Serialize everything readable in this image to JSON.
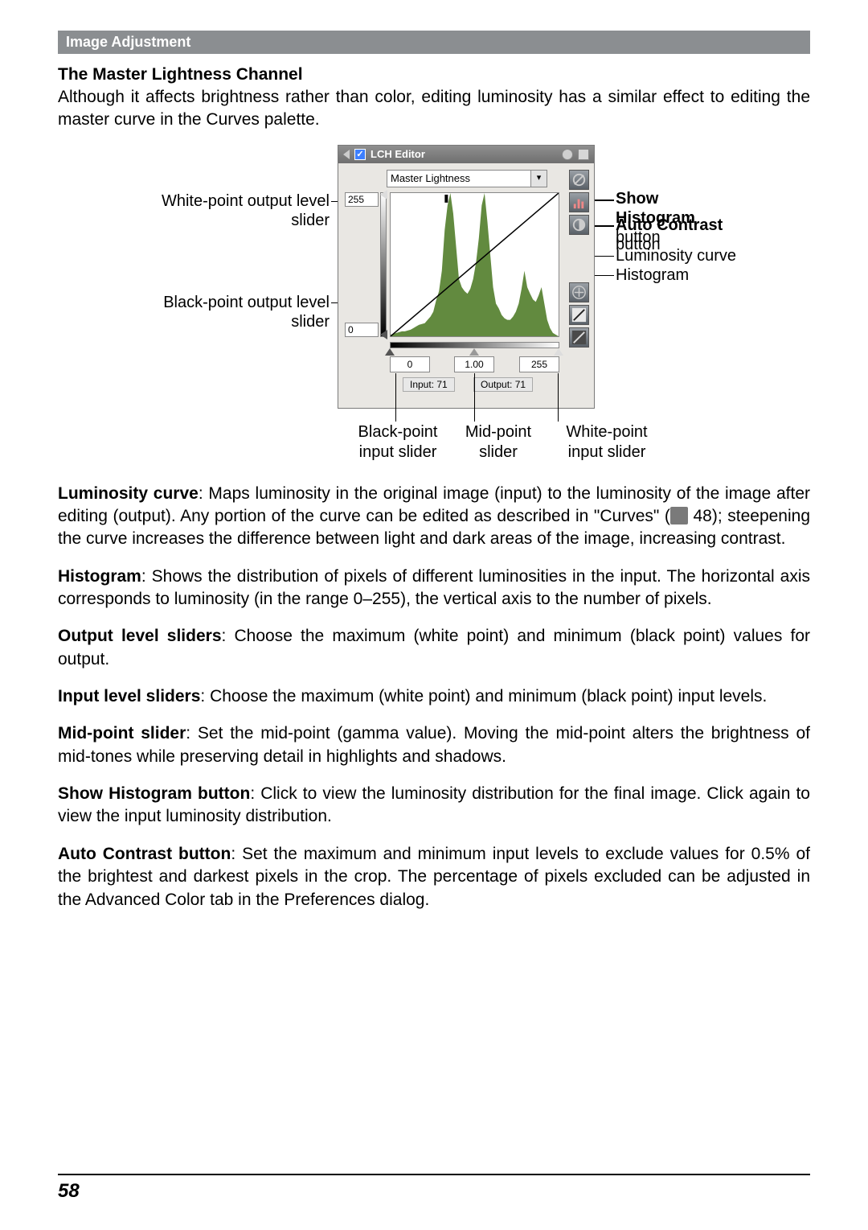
{
  "section_header": "Image Adjustment",
  "subhead": "The Master Lightness Channel",
  "intro": "Although it affects brightness rather than color, editing luminosity has a similar effect to editing the master curve in the Curves palette.",
  "editor": {
    "title": "LCH Editor",
    "dropdown": "Master Lightness",
    "output_max": "255",
    "output_min": "0",
    "input_min": "0",
    "input_mid": "1.00",
    "input_max": "255",
    "io_input": "Input: 71",
    "io_output": "Output: 71",
    "histogram_values": [
      2,
      3,
      4,
      5,
      6,
      6,
      7,
      8,
      10,
      12,
      14,
      15,
      16,
      20,
      24,
      30,
      44,
      55,
      80,
      130,
      160,
      175,
      150,
      110,
      70,
      60,
      55,
      52,
      58,
      70,
      90,
      120,
      160,
      175,
      140,
      100,
      60,
      40,
      34,
      26,
      22,
      20,
      20,
      24,
      30,
      40,
      58,
      80,
      60,
      52,
      45,
      42,
      50,
      60,
      40,
      20,
      10,
      4,
      2
    ],
    "hist_color": "#628a3f",
    "curve_color": "#000000"
  },
  "callouts": {
    "white_out": "White-point output level slider",
    "black_out": "Black-point output level slider",
    "show_hist": "Show Histogram",
    "show_hist_suffix": " button",
    "auto_contrast": "Auto Contrast",
    "auto_contrast_suffix": " button",
    "lum_curve": "Luminosity curve",
    "histogram": "Histogram",
    "black_in": "Black-point input slider",
    "mid": "Mid-point slider",
    "white_in": "White-point input slider"
  },
  "defs": {
    "lum_curve_head": "Luminosity curve",
    "lum_curve_body_a": ": Maps luminosity in the original image (input) to the luminosity of the image after editing (output).  Any portion of the curve can be edited as described in \"Curves\" (",
    "lum_curve_body_b": " 48); steepening the curve increases the difference between light and dark areas of the image, increasing contrast.",
    "histogram_head": "Histogram",
    "histogram_body": ": Shows the distribution of pixels of different luminosities in the input.  The horizontal axis corresponds to luminosity (in the range 0–255), the vertical axis to the number of pixels.",
    "output_head": "Output level sliders",
    "output_body": ": Choose the maximum (white point) and minimum (black point) values for output.",
    "input_head": "Input level sliders",
    "input_body": ": Choose the maximum (white point) and minimum (black point) input levels.",
    "mid_head": "Mid-point slider",
    "mid_body": ": Set the mid-point (gamma value).  Moving the mid-point alters the brightness of mid-tones while preserving detail in highlights and shadows.",
    "showhist_head": "Show Histogram button",
    "showhist_body": ": Click to view the luminosity distribution for the final image.  Click again to view the input luminosity distribution.",
    "auto_head": "Auto Contrast button",
    "auto_body": ": Set the maximum and minimum input levels to exclude values for 0.5% of the brightest and darkest pixels in the crop.  The percentage of pixels excluded can be adjusted in the Advanced Color tab in the Preferences dialog."
  },
  "page_number": "58"
}
